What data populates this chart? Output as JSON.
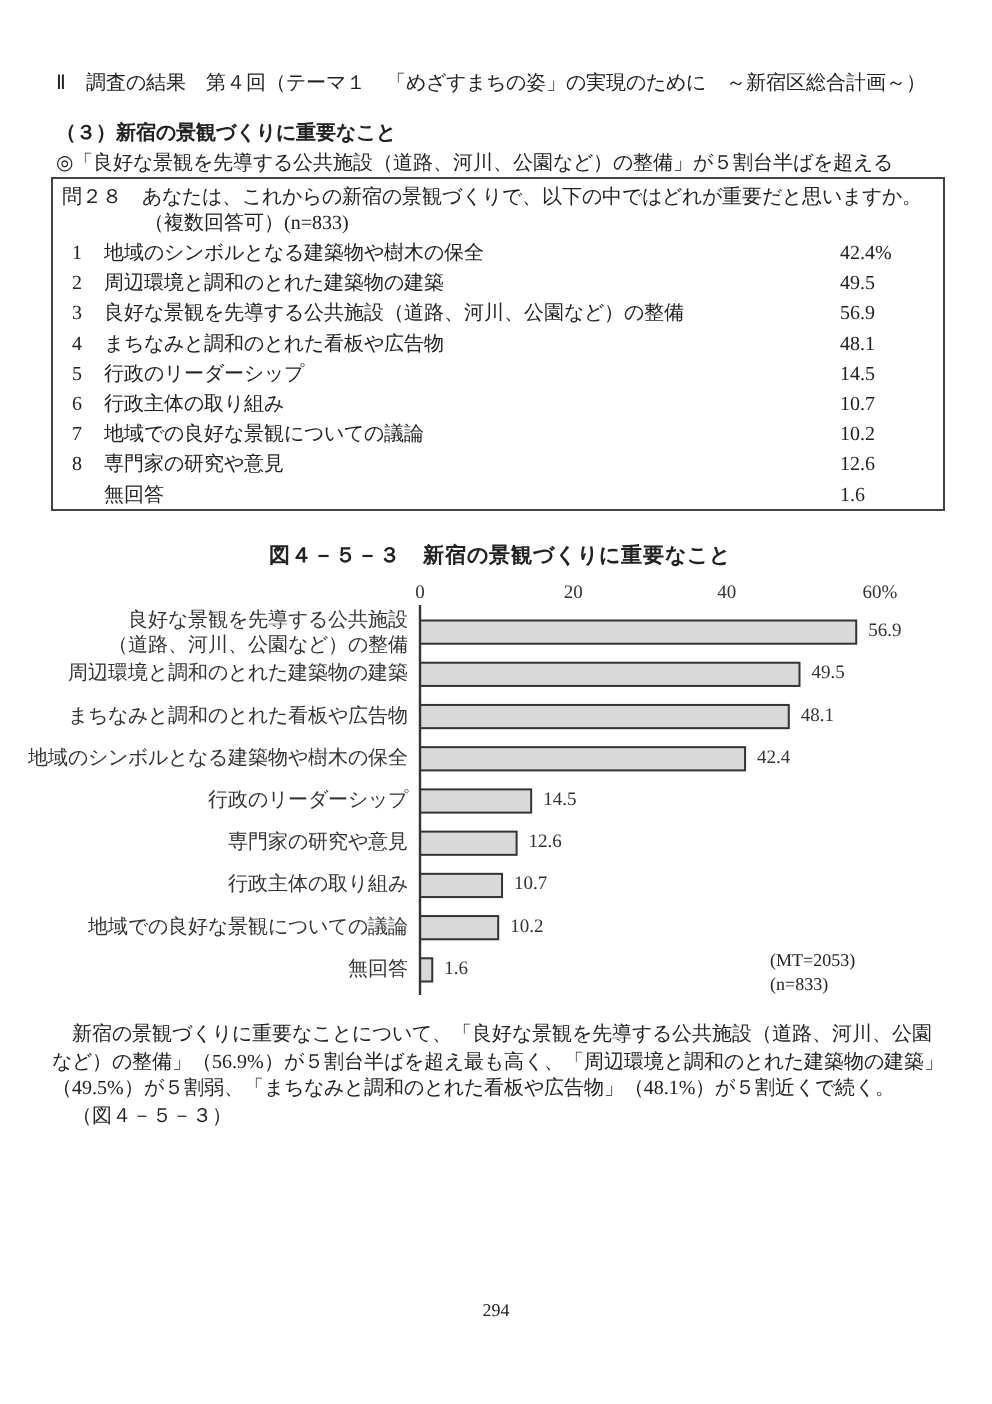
{
  "chart_data": {
    "type": "bar",
    "orientation": "horizontal",
    "title": "図４－５－３　新宿の景観づくりに重要なこと",
    "categories": [
      "良好な景観を先導する公共施設（道路、河川、公園など）の整備",
      "周辺環境と調和のとれた建築物の建築",
      "まちなみと調和のとれた看板や広告物",
      "地域のシンボルとなる建築物や樹木の保全",
      "行政のリーダーシップ",
      "専門家の研究や意見",
      "行政主体の取り組み",
      "地域での良好な景観についての議論",
      "無回答"
    ],
    "values": [
      56.9,
      49.5,
      48.1,
      42.4,
      14.5,
      12.6,
      10.7,
      10.2,
      1.6
    ],
    "color": "#d9d9d9",
    "xlim": [
      0,
      60
    ],
    "xticks": [
      0,
      20,
      40,
      {
        "value": 60,
        "label": "60%"
      }
    ],
    "data_labels": true,
    "annotations": [
      "Ⅱ　調査の結果　第４回（テーマ１　「めざすまちの姿」の実現のために　～新宿区総合計画～）",
      "（３）新宿の景観づくりに重要なこと",
      "◎「良好な景観を先導する公共施設（道路、河川、公園など）の整備」が５割台半ばを超える",
      "問２８　あなたは、これからの新宿の景観づくりで、以下の中ではどれが重要だと思いますか。",
      "（複数回答可）(n=833)",
      "1",
      "地域のシンボルとなる建築物や樹木の保全",
      "42.4%",
      "2",
      "周辺環境と調和のとれた建築物の建築",
      "49.5",
      "3",
      "良好な景観を先導する公共施設（道路、河川、公園など）の整備",
      "56.9",
      "4",
      "まちなみと調和のとれた看板や広告物",
      "48.1",
      "5",
      "行政のリーダーシップ",
      "14.5",
      "6",
      "行政主体の取り組み",
      "10.7",
      "7",
      "地域での良好な景観についての議論",
      "10.2",
      "8",
      "専門家の研究や意見",
      "12.6",
      "無回答",
      "1.6",
      "(MT=2053)",
      "(n=833)",
      "新宿の景観づくりに重要なことについて、「良好な景観を先導する公共施設（道路、河川、公園など）の整備」（56.9%）が５割台半ばを超え最も高く、「周辺環境と調和のとれた建築物の建築」（49.5%）が５割弱、「まちなみと調和のとれた看板や広告物」（48.1%）が５割近くで続く。",
      "（図４－５－３）",
      "294"
    ]
  }
}
